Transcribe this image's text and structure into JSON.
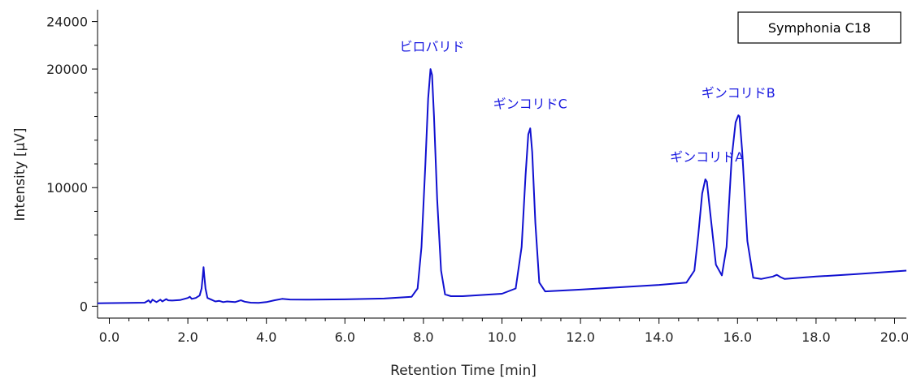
{
  "chart_data": {
    "type": "line",
    "title": "",
    "xlabel": "Retention Time [min]",
    "ylabel": "Intensity [μV]",
    "xlim": [
      -0.3,
      20.3
    ],
    "ylim": [
      -1000,
      25000
    ],
    "xticks": [
      0.0,
      2.0,
      4.0,
      6.0,
      8.0,
      10.0,
      12.0,
      14.0,
      16.0,
      18.0,
      20.0
    ],
    "xtick_labels": [
      "0.0",
      "2.0",
      "4.0",
      "6.0",
      "8.0",
      "10.0",
      "12.0",
      "14.0",
      "16.0",
      "18.0",
      "20.0"
    ],
    "yticks": [
      0,
      10000,
      20000,
      24000
    ],
    "ytick_labels": [
      "0",
      "10000",
      "20000",
      "24000"
    ],
    "grid": false,
    "legend": {
      "position": "top-right",
      "label": "Symphonia C18"
    },
    "line_color": "#1010d0",
    "label_color": "#1a1ae0",
    "series": [
      {
        "name": "Symphonia C18",
        "x": [
          -0.3,
          0.5,
          0.9,
          1.0,
          1.05,
          1.1,
          1.2,
          1.3,
          1.35,
          1.45,
          1.5,
          1.6,
          1.8,
          2.0,
          2.05,
          2.1,
          2.2,
          2.3,
          2.35,
          2.38,
          2.4,
          2.42,
          2.45,
          2.5,
          2.6,
          2.7,
          2.8,
          2.9,
          3.0,
          3.2,
          3.3,
          3.35,
          3.45,
          3.6,
          3.8,
          4.0,
          4.2,
          4.4,
          4.6,
          5.0,
          6.0,
          7.0,
          7.7,
          7.85,
          7.95,
          8.05,
          8.12,
          8.18,
          8.22,
          8.27,
          8.35,
          8.45,
          8.55,
          8.7,
          9.0,
          10.0,
          10.35,
          10.5,
          10.6,
          10.67,
          10.72,
          10.77,
          10.85,
          10.95,
          11.1,
          12.0,
          13.0,
          14.0,
          14.7,
          14.9,
          15.0,
          15.1,
          15.18,
          15.22,
          15.3,
          15.45,
          15.6,
          15.72,
          15.85,
          15.95,
          16.02,
          16.05,
          16.12,
          16.25,
          16.4,
          16.6,
          16.9,
          17.0,
          17.1,
          17.2,
          17.4,
          18.0,
          19.0,
          20.3
        ],
        "y": [
          250,
          280,
          300,
          500,
          300,
          550,
          350,
          550,
          400,
          600,
          500,
          480,
          520,
          700,
          800,
          620,
          700,
          900,
          1500,
          2500,
          3300,
          2500,
          1500,
          700,
          550,
          400,
          450,
          350,
          400,
          350,
          450,
          500,
          380,
          300,
          280,
          350,
          500,
          620,
          570,
          550,
          580,
          650,
          800,
          1500,
          5000,
          12000,
          17500,
          20000,
          19500,
          16000,
          9000,
          3000,
          1000,
          850,
          850,
          1050,
          1500,
          5000,
          11000,
          14500,
          15000,
          13000,
          7000,
          2000,
          1250,
          1400,
          1600,
          1800,
          2000,
          3000,
          6000,
          9500,
          10700,
          10500,
          8000,
          3500,
          2600,
          5000,
          12500,
          15500,
          16100,
          16000,
          13000,
          5500,
          2400,
          2300,
          2500,
          2650,
          2450,
          2300,
          2350,
          2500,
          2700,
          3000
        ]
      }
    ],
    "annotations": [
      {
        "text": "ビロバリド",
        "x": 8.22,
        "y": 21500
      },
      {
        "text": "ギンコリドC",
        "x": 10.72,
        "y": 16700
      },
      {
        "text": "ギンコリドA",
        "x": 15.22,
        "y": 12200
      },
      {
        "text": "ギンコリドB",
        "x": 16.02,
        "y": 17600
      }
    ]
  }
}
